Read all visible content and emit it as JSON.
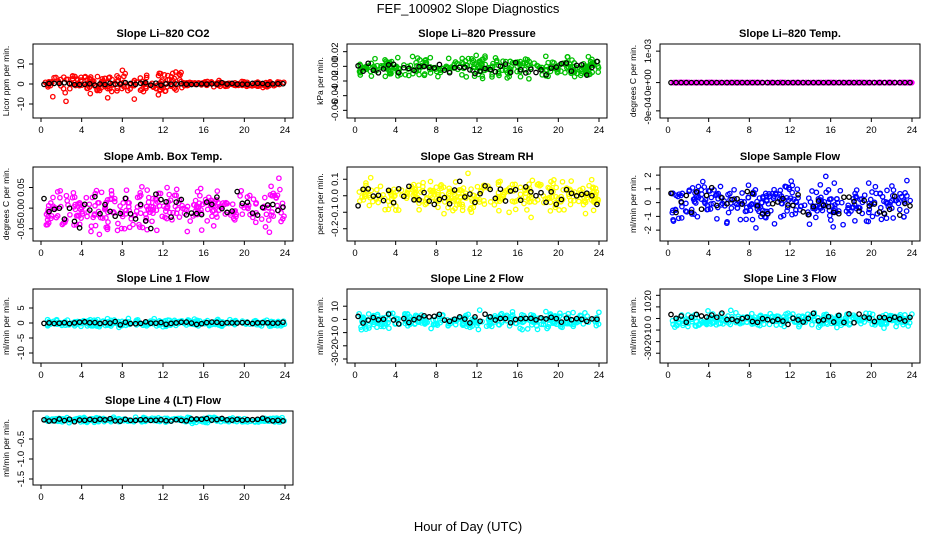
{
  "figure": {
    "title": "FEF_100902  Slope Diagnostics",
    "xlabel": "Hour of Day (UTC)"
  },
  "chart_data": [
    {
      "type": "scatter",
      "title": "Slope Li–820 CO2",
      "ylabel": "Licor ppm per min.",
      "xlim": [
        0,
        24
      ],
      "ylim": [
        -15,
        18
      ],
      "xticks": [
        0,
        4,
        8,
        12,
        16,
        20,
        24
      ],
      "yticks": [
        -10,
        0,
        10
      ],
      "ytick_labels": [
        "-10",
        "0",
        "10"
      ],
      "grid": false,
      "series": [
        {
          "color": "#ff0000",
          "base": 0.0,
          "noise": 3.0,
          "spread_hours": [
            1,
            14
          ],
          "outlier_scale": 10
        },
        {
          "color": "#000000",
          "base": 0.0,
          "noise": 0.3
        }
      ]
    },
    {
      "type": "scatter",
      "title": "Slope Li–820 Pressure",
      "ylabel": "kPa per min.",
      "xlim": [
        0,
        24
      ],
      "ylim": [
        -0.065,
        0.025
      ],
      "xticks": [
        0,
        4,
        8,
        12,
        16,
        20,
        24
      ],
      "yticks": [
        -0.06,
        -0.04,
        -0.02,
        0.0,
        0.02
      ],
      "ytick_labels": [
        "-0.06",
        "-0.04",
        "-0.02",
        "0.00",
        "0.02"
      ],
      "grid": false,
      "series": [
        {
          "color": "#00c000",
          "base": -0.002,
          "noise": 0.007
        },
        {
          "color": "#000000",
          "base": -0.002,
          "noise": 0.004
        }
      ]
    },
    {
      "type": "scatter",
      "title": "Slope Li–820 Temp.",
      "ylabel": "degrees C per min.",
      "xlim": [
        0,
        24
      ],
      "ylim": [
        -0.001,
        0.0011
      ],
      "xticks": [
        0,
        4,
        8,
        12,
        16,
        20,
        24
      ],
      "yticks": [
        -0.0009,
        0.0,
        0.001
      ],
      "ytick_labels": [
        "-9e-04",
        "0e+00",
        "1e-03"
      ],
      "grid": false,
      "series": [
        {
          "color": "#ff00ff",
          "base": 0.0,
          "noise": 0.0
        },
        {
          "color": "#000000",
          "base": 0.0,
          "noise": 0.0
        }
      ]
    },
    {
      "type": "scatter",
      "title": "Slope Amb. Box Temp.",
      "ylabel": "degrees C per min.",
      "xlim": [
        0,
        24
      ],
      "ylim": [
        -0.07,
        0.09
      ],
      "xticks": [
        0,
        4,
        8,
        12,
        16,
        20,
        24
      ],
      "yticks": [
        -0.05,
        0.0,
        0.05
      ],
      "ytick_labels": [
        "-0.05",
        "0.00",
        "0.05"
      ],
      "grid": false,
      "series": [
        {
          "color": "#ff00ff",
          "base": 0.0,
          "noise": 0.025
        },
        {
          "color": "#000000",
          "base": 0.0,
          "noise": 0.02
        }
      ]
    },
    {
      "type": "scatter",
      "title": "Slope Gas Stream RH",
      "ylabel": "percent per min.",
      "xlim": [
        0,
        24
      ],
      "ylim": [
        -0.25,
        0.15
      ],
      "xticks": [
        0,
        4,
        8,
        12,
        16,
        20,
        24
      ],
      "yticks": [
        -0.2,
        -0.1,
        0.0,
        0.1
      ],
      "ytick_labels": [
        "-0.2",
        "-0.1",
        "0.0",
        "0.1"
      ],
      "grid": false,
      "series": [
        {
          "color": "#ffff00",
          "base": 0.0,
          "noise": 0.05
        },
        {
          "color": "#000000",
          "base": 0.0,
          "noise": 0.04
        }
      ]
    },
    {
      "type": "scatter",
      "title": "Slope Sample Flow",
      "ylabel": "ml/min per min.",
      "xlim": [
        0,
        24
      ],
      "ylim": [
        -2.5,
        2.3
      ],
      "xticks": [
        0,
        4,
        8,
        12,
        16,
        20,
        24
      ],
      "yticks": [
        -2,
        -1,
        0,
        1,
        2
      ],
      "ytick_labels": [
        "-2",
        "-1",
        "0",
        "1",
        "2"
      ],
      "grid": false,
      "series": [
        {
          "color": "#0000ff",
          "base": 0.0,
          "noise": 0.7
        },
        {
          "color": "#000000",
          "base": 0.0,
          "noise": 0.5
        }
      ]
    },
    {
      "type": "scatter",
      "title": "Slope Line 1 Flow",
      "ylabel": "ml/min per min.",
      "xlim": [
        0,
        24
      ],
      "ylim": [
        -12,
        10
      ],
      "xticks": [
        0,
        4,
        8,
        12,
        16,
        20,
        24
      ],
      "yticks": [
        -10,
        -5,
        0,
        5
      ],
      "ytick_labels": [
        "-10",
        "-5",
        "0",
        "5"
      ],
      "grid": false,
      "series": [
        {
          "color": "#00ffff",
          "base": 0.0,
          "noise": 0.6
        },
        {
          "color": "#000000",
          "base": 0.0,
          "noise": 0.2
        }
      ]
    },
    {
      "type": "scatter",
      "title": "Slope Line 2 Flow",
      "ylabel": "ml/min per min.",
      "xlim": [
        0,
        24
      ],
      "ylim": [
        -30,
        20
      ],
      "xticks": [
        0,
        4,
        8,
        12,
        16,
        20,
        24
      ],
      "yticks": [
        -30,
        -20,
        -10,
        0,
        10
      ],
      "ytick_labels": [
        "-30",
        "-20",
        "-10",
        "0",
        "10"
      ],
      "grid": false,
      "series": [
        {
          "color": "#00ffff",
          "base": -1.0,
          "noise": 3.0
        },
        {
          "color": "#000000",
          "base": 0.0,
          "noise": 1.5
        }
      ]
    },
    {
      "type": "scatter",
      "title": "Slope Line 3 Flow",
      "ylabel": "ml/min per min.",
      "xlim": [
        0,
        24
      ],
      "ylim": [
        -35,
        22
      ],
      "xticks": [
        0,
        4,
        8,
        12,
        16,
        20,
        24
      ],
      "yticks": [
        -30,
        -20,
        -10,
        0,
        10,
        20
      ],
      "ytick_labels": [
        "-30",
        "-20",
        "-10",
        "0",
        "10",
        "20"
      ],
      "grid": false,
      "series": [
        {
          "color": "#00ffff",
          "base": -1.0,
          "noise": 3.0
        },
        {
          "color": "#000000",
          "base": 0.0,
          "noise": 2.0
        }
      ]
    },
    {
      "type": "scatter",
      "title": "Slope Line 4 (LT) Flow",
      "ylabel": "ml/min per min.",
      "xlim": [
        0,
        24
      ],
      "ylim": [
        -1.55,
        0.1
      ],
      "xticks": [
        0,
        4,
        8,
        12,
        16,
        20,
        24
      ],
      "yticks": [
        -1.5,
        -1.0,
        -0.5
      ],
      "ytick_labels": [
        "-1.5",
        "-1.0",
        "-0.5"
      ],
      "grid": false,
      "series": [
        {
          "color": "#00ffff",
          "base": -0.02,
          "noise": 0.03
        },
        {
          "color": "#000000",
          "base": -0.02,
          "noise": 0.02
        }
      ]
    }
  ]
}
